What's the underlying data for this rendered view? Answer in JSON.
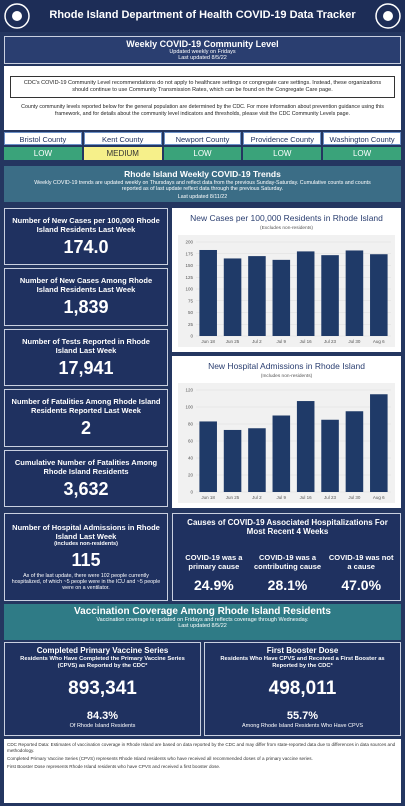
{
  "header": {
    "title": "Rhode Island Department of Health COVID-19 Data Tracker"
  },
  "community_level": {
    "title": "Weekly COVID-19 Community Level",
    "updated": "Updated weekly on Fridays",
    "last_updated": "Last updated 8/5/22",
    "cdc_note": "CDC's COVID-19 Community Level recommendations do not apply to healthcare settings or congregate care settings. Instead, these organizations should continue to use Community Transmission Rates, which can be found on the Congregate Care page.",
    "county_note": "County community levels reported below for the general population are determined by the CDC. For more information about prevention guidance using this framework, and for details about the community level indicators and thresholds, please visit the CDC Community Levels page.",
    "counties": [
      {
        "name": "Bristol County",
        "level": "LOW",
        "color": "#3aa37a"
      },
      {
        "name": "Kent County",
        "level": "MEDIUM",
        "color": "#f6f08a"
      },
      {
        "name": "Newport County",
        "level": "LOW",
        "color": "#3aa37a"
      },
      {
        "name": "Providence County",
        "level": "LOW",
        "color": "#3aa37a"
      },
      {
        "name": "Washington County",
        "level": "LOW",
        "color": "#3aa37a"
      }
    ]
  },
  "trends": {
    "title": "Rhode Island Weekly COVID-19 Trends",
    "description": "Weekly COVID-19 trends are updated weekly on Thursdays and reflect data from the previous Sunday-Saturday. Cumulative counts and counts reported as of last update reflect data through the previous Saturday.",
    "last_updated": "Last updated 8/11/22"
  },
  "kpis": [
    {
      "label": "Number of New Cases per 100,000 Rhode Island Residents Last Week",
      "value": "174.0"
    },
    {
      "label": "Number of New Cases Among Rhode Island Residents Last Week",
      "value": "1,839"
    },
    {
      "label": "Number of Tests Reported in Rhode Island Last Week",
      "value": "17,941"
    },
    {
      "label": "Number of Fatalities Among Rhode Island Residents Reported Last Week",
      "value": "2"
    },
    {
      "label": "Cumulative Number of Fatalities Among Rhode Island Residents",
      "value": "3,632"
    }
  ],
  "hospital_admissions": {
    "label": "Number of Hospital Admissions in Rhode Island Last Week",
    "sublabel": "(includes non-residents)",
    "value": "115",
    "note": "As of the last update, there were 102 people currently hospitalized, of which ~5 people were in the ICU and ~5 people were on a ventilator."
  },
  "causes": {
    "title": "Causes of COVID-19 Associated Hospitalizations For Most Recent 4 Weeks",
    "items": [
      {
        "label": "COVID-19 was a primary cause",
        "value": "24.9%"
      },
      {
        "label": "COVID-19 was a contributing cause",
        "value": "28.1%"
      },
      {
        "label": "COVID-19 was not a cause",
        "value": "47.0%"
      }
    ]
  },
  "vaccination": {
    "title": "Vaccination Coverage Among Rhode Island Residents",
    "subtitle": "Vaccination coverage is updated on Fridays and reflects coverage through Wednesday.",
    "last_updated": "Last updated 8/5/22",
    "panels": [
      {
        "title": "Completed Primary Vaccine Series",
        "subtitle": "Residents Who Have Completed the Primary Vaccine Series (CPVS) as Reported by the CDC*",
        "value": "893,341",
        "percent": "84.3%",
        "percent_label": "Of Rhode Island Residents"
      },
      {
        "title": "First Booster Dose",
        "subtitle": "Residents Who Have CPVS and Received a First Booster as Reported by the CDC*",
        "value": "498,011",
        "percent": "55.7%",
        "percent_label": "Among Rhode Island Residents Who Have CPVS"
      }
    ]
  },
  "footnotes": [
    "CDC Reported Data: Estimates of vaccination coverage in Rhode Island are based on data reported by the CDC and may differ from state-reported data due to differences in data sources and methodology.",
    "Completed Primary Vaccine Series (CPVS) represents Rhode Island residents who have received all recommended doses of a primary vaccine series.",
    "First Booster Dose represents Rhode Island residents who have CPVS and received a first booster dose."
  ],
  "chart_data": [
    {
      "type": "bar",
      "title": "New Cases per 100,000 Residents in Rhode Island",
      "subtitle": "(Excludes non-residents)",
      "categories": [
        "Jun 18",
        "Jun 25",
        "Jul 2",
        "Jul 9",
        "Jul 16",
        "Jul 23",
        "Jul 30",
        "Aug 6"
      ],
      "values": [
        183,
        165,
        170,
        162,
        180,
        172,
        182,
        174
      ],
      "color": "#1f3a68",
      "ylim": [
        0,
        200
      ],
      "yticks": [
        0,
        25,
        50,
        75,
        100,
        125,
        150,
        175,
        200
      ],
      "grid": true
    },
    {
      "type": "bar",
      "title": "New Hospital Admissions in Rhode Island",
      "subtitle": "(Includes non-residents)",
      "categories": [
        "Jun 18",
        "Jun 25",
        "Jul 2",
        "Jul 9",
        "Jul 16",
        "Jul 23",
        "Jul 30",
        "Aug 6"
      ],
      "values": [
        83,
        73,
        75,
        90,
        107,
        85,
        95,
        115
      ],
      "color": "#1f3a68",
      "ylim": [
        0,
        120
      ],
      "yticks": [
        0,
        20,
        40,
        60,
        80,
        100,
        120
      ],
      "grid": true
    }
  ]
}
